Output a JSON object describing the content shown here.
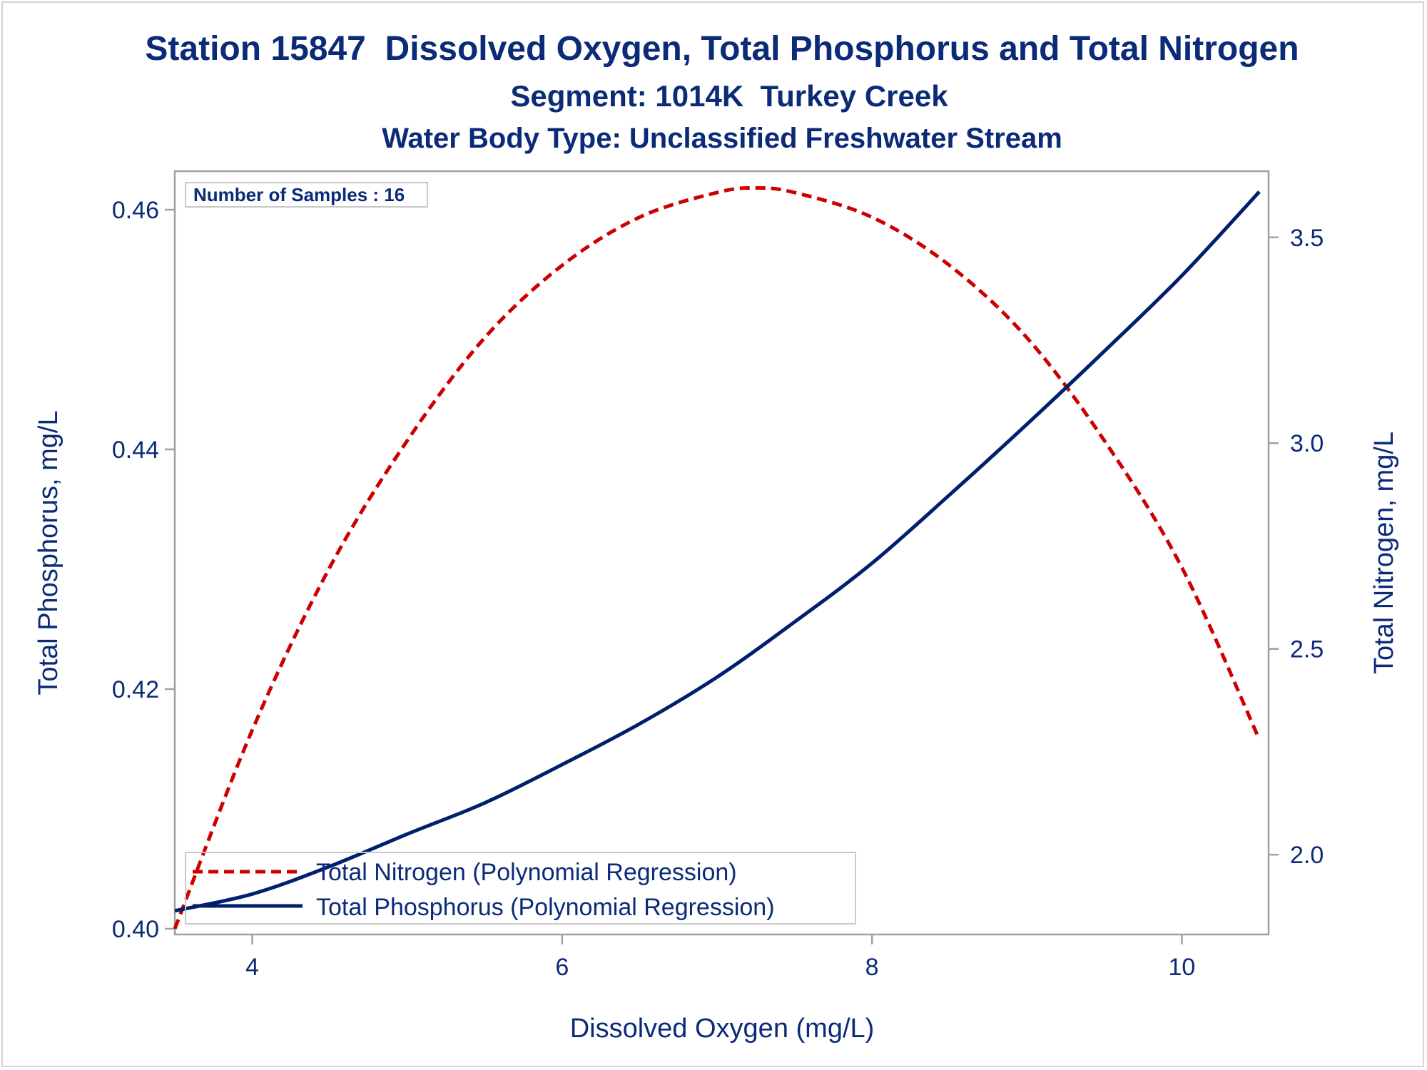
{
  "colors": {
    "text": "#0b2b79",
    "nitrogen": "#cc0000",
    "phosphorus": "#00206e",
    "frame": "#a0a0a0"
  },
  "chart_data": {
    "type": "line",
    "title": "Station 15847  Dissolved Oxygen, Total Phosphorus and Total Nitrogen",
    "subtitle": "Segment: 1014K  Turkey Creek",
    "subtitle2": "Water Body Type: Unclassified Freshwater Stream",
    "inset": "Number of Samples : 16",
    "xlabel": "Dissolved Oxygen (mg/L)",
    "ylabel": "Total Phosphorus, mg/L",
    "y2label": "Total Nitrogen, mg/L",
    "xlim": [
      3.5,
      10.5
    ],
    "ylim": [
      0.4,
      0.4625
    ],
    "y2lim": [
      1.82,
      3.64
    ],
    "x_ticks": [
      "4",
      "6",
      "8",
      "10"
    ],
    "x_tick_values": [
      4,
      6,
      8,
      10
    ],
    "y_ticks": [
      "0.40",
      "0.42",
      "0.44",
      "0.46"
    ],
    "y_tick_values": [
      0.4,
      0.42,
      0.44,
      0.46
    ],
    "y2_ticks": [
      "2.0",
      "2.5",
      "3.0",
      "3.5"
    ],
    "y2_tick_values": [
      2.0,
      2.5,
      3.0,
      3.5
    ],
    "grid": false,
    "legend_position": "bottom-left",
    "series": [
      {
        "name": "Total Nitrogen (Polynomial Regression)",
        "axis": "right",
        "style": "dashed",
        "x": [
          3.5,
          4.0,
          4.5,
          5.0,
          5.5,
          6.0,
          6.5,
          7.0,
          7.25,
          7.5,
          8.0,
          8.5,
          9.0,
          9.5,
          10.0,
          10.5
        ],
        "values": [
          1.82,
          2.303,
          2.698,
          3.006,
          3.256,
          3.432,
          3.549,
          3.609,
          3.62,
          3.609,
          3.549,
          3.432,
          3.256,
          3.006,
          2.698,
          2.28
        ]
      },
      {
        "name": "Total Phosphorus (Polynomial Regression)",
        "axis": "left",
        "style": "solid",
        "x": [
          3.5,
          4.0,
          4.5,
          5.0,
          5.5,
          6.0,
          6.5,
          7.0,
          7.5,
          8.0,
          8.5,
          9.0,
          9.5,
          10.0,
          10.5
        ],
        "values": [
          0.4015,
          0.4029,
          0.4052,
          0.4079,
          0.4105,
          0.4137,
          0.4171,
          0.421,
          0.4256,
          0.4305,
          0.4362,
          0.4421,
          0.4482,
          0.4545,
          0.4615
        ]
      }
    ]
  }
}
